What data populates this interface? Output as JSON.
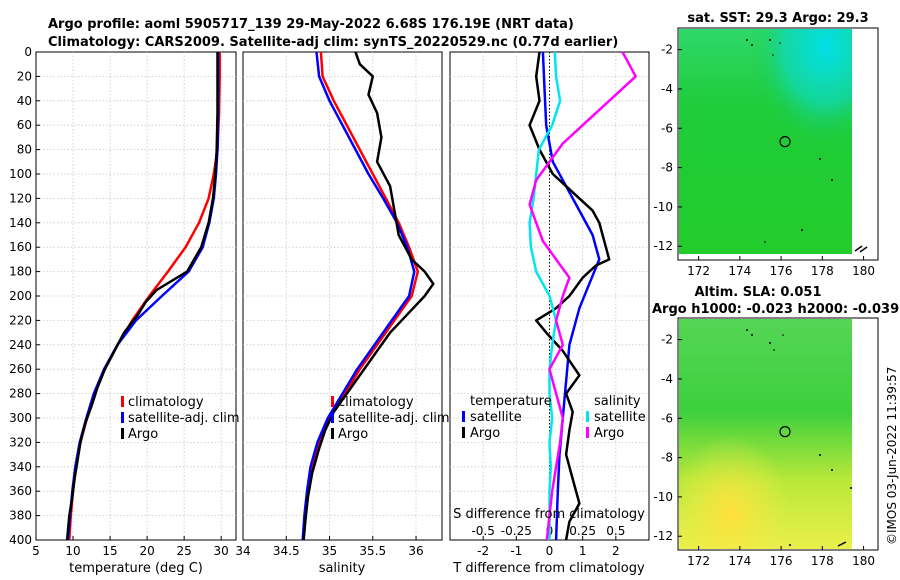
{
  "header": {
    "line1": "Argo profile: aoml 5905717_139 29-May-2022 6.68S 176.19E (NRT data)",
    "line2": "Climatology: CARS2009. Satellite-adj clim: synTS_20220529.nc (0.77d earlier)"
  },
  "colors": {
    "climatology": "#ff0000",
    "satellite": "#0000ff",
    "argo": "#000000",
    "t_diff": "#00e5ee",
    "s_diff": "#ff00ff"
  },
  "chart_data": [
    {
      "type": "line",
      "id": "temperature",
      "xlabel": "temperature (deg C)",
      "xlim": [
        5,
        32
      ],
      "xticks": [
        5,
        10,
        15,
        20,
        25,
        30
      ],
      "ylim": [
        0,
        400
      ],
      "yticks": [
        0,
        20,
        40,
        60,
        80,
        100,
        120,
        140,
        160,
        180,
        200,
        220,
        240,
        260,
        280,
        300,
        320,
        340,
        360,
        380,
        400
      ],
      "legend": [
        "climatology",
        "satellite-adj. clim",
        "Argo"
      ],
      "series": [
        {
          "name": "climatology",
          "color": "#ff0000",
          "points": [
            [
              29.8,
              0
            ],
            [
              29.8,
              20
            ],
            [
              29.7,
              50
            ],
            [
              29.5,
              80
            ],
            [
              29.0,
              100
            ],
            [
              28.3,
              120
            ],
            [
              27.0,
              140
            ],
            [
              25.2,
              160
            ],
            [
              22.8,
              180
            ],
            [
              20.3,
              200
            ],
            [
              18.0,
              220
            ],
            [
              16.0,
              240
            ],
            [
              14.2,
              260
            ],
            [
              12.9,
              280
            ],
            [
              11.9,
              300
            ],
            [
              11.0,
              320
            ],
            [
              10.4,
              340
            ],
            [
              10.0,
              360
            ],
            [
              9.7,
              380
            ],
            [
              9.5,
              400
            ]
          ]
        },
        {
          "name": "satellite-adj. clim",
          "color": "#0000ff",
          "points": [
            [
              29.6,
              0
            ],
            [
              29.6,
              20
            ],
            [
              29.6,
              50
            ],
            [
              29.5,
              80
            ],
            [
              29.3,
              100
            ],
            [
              29.0,
              120
            ],
            [
              28.4,
              140
            ],
            [
              27.5,
              160
            ],
            [
              25.6,
              180
            ],
            [
              22.0,
              200
            ],
            [
              18.5,
              220
            ],
            [
              16.0,
              240
            ],
            [
              14.2,
              260
            ],
            [
              12.8,
              280
            ],
            [
              11.8,
              300
            ],
            [
              10.9,
              320
            ],
            [
              10.3,
              340
            ],
            [
              9.9,
              360
            ],
            [
              9.6,
              380
            ],
            [
              9.3,
              400
            ]
          ]
        },
        {
          "name": "Argo",
          "color": "#000000",
          "points": [
            [
              29.5,
              0
            ],
            [
              29.5,
              20
            ],
            [
              29.5,
              50
            ],
            [
              29.4,
              80
            ],
            [
              29.2,
              100
            ],
            [
              28.9,
              120
            ],
            [
              28.3,
              140
            ],
            [
              27.3,
              160
            ],
            [
              25.4,
              180
            ],
            [
              21.3,
              195
            ],
            [
              19.8,
              205
            ],
            [
              18.8,
              215
            ],
            [
              16.9,
              230
            ],
            [
              15.6,
              245
            ],
            [
              14.3,
              260
            ],
            [
              13.3,
              275
            ],
            [
              12.5,
              290
            ],
            [
              11.6,
              305
            ],
            [
              11.0,
              320
            ],
            [
              10.6,
              335
            ],
            [
              10.2,
              350
            ],
            [
              9.9,
              365
            ],
            [
              9.5,
              380
            ],
            [
              9.2,
              400
            ]
          ]
        }
      ]
    },
    {
      "type": "line",
      "id": "salinity",
      "xlabel": "salinity",
      "xlim": [
        34,
        36.3
      ],
      "xticks": [
        34,
        34.5,
        35,
        35.5,
        36
      ],
      "xtick_labels": [
        "34",
        "34.5",
        "35",
        "35.5",
        "36"
      ],
      "ylim": [
        0,
        400
      ],
      "legend": [
        "climatology",
        "satellite-adj. clim",
        "Argo"
      ],
      "series": [
        {
          "name": "climatology",
          "color": "#ff0000",
          "points": [
            [
              34.9,
              0
            ],
            [
              34.92,
              20
            ],
            [
              35.05,
              40
            ],
            [
              35.2,
              60
            ],
            [
              35.35,
              80
            ],
            [
              35.5,
              100
            ],
            [
              35.65,
              120
            ],
            [
              35.8,
              140
            ],
            [
              35.92,
              160
            ],
            [
              36.02,
              180
            ],
            [
              35.95,
              200
            ],
            [
              35.75,
              220
            ],
            [
              35.55,
              240
            ],
            [
              35.35,
              260
            ],
            [
              35.18,
              280
            ],
            [
              35.0,
              300
            ],
            [
              34.88,
              320
            ],
            [
              34.8,
              340
            ],
            [
              34.75,
              360
            ],
            [
              34.72,
              380
            ],
            [
              34.7,
              400
            ]
          ]
        },
        {
          "name": "satellite-adj. clim",
          "color": "#0000ff",
          "points": [
            [
              34.85,
              0
            ],
            [
              34.88,
              20
            ],
            [
              35.0,
              40
            ],
            [
              35.15,
              60
            ],
            [
              35.3,
              80
            ],
            [
              35.45,
              100
            ],
            [
              35.62,
              120
            ],
            [
              35.78,
              140
            ],
            [
              35.9,
              160
            ],
            [
              35.98,
              180
            ],
            [
              35.92,
              200
            ],
            [
              35.72,
              220
            ],
            [
              35.52,
              240
            ],
            [
              35.32,
              260
            ],
            [
              35.15,
              280
            ],
            [
              34.98,
              300
            ],
            [
              34.86,
              320
            ],
            [
              34.78,
              340
            ],
            [
              34.74,
              360
            ],
            [
              34.71,
              380
            ],
            [
              34.69,
              400
            ]
          ]
        },
        {
          "name": "Argo",
          "color": "#000000",
          "points": [
            [
              35.3,
              0
            ],
            [
              35.35,
              10
            ],
            [
              35.5,
              20
            ],
            [
              35.45,
              35
            ],
            [
              35.55,
              50
            ],
            [
              35.6,
              70
            ],
            [
              35.55,
              90
            ],
            [
              35.7,
              110
            ],
            [
              35.75,
              130
            ],
            [
              35.8,
              150
            ],
            [
              35.95,
              170
            ],
            [
              36.1,
              180
            ],
            [
              36.2,
              190
            ],
            [
              36.1,
              200
            ],
            [
              35.9,
              215
            ],
            [
              35.7,
              230
            ],
            [
              35.5,
              250
            ],
            [
              35.35,
              265
            ],
            [
              35.2,
              280
            ],
            [
              35.05,
              295
            ],
            [
              34.95,
              310
            ],
            [
              34.88,
              325
            ],
            [
              34.8,
              345
            ],
            [
              34.75,
              365
            ],
            [
              34.72,
              385
            ],
            [
              34.7,
              400
            ]
          ]
        }
      ]
    },
    {
      "type": "line",
      "id": "differences",
      "xlabel": "T difference from climatology",
      "top_label": "S difference from climatology",
      "xlim": [
        -3,
        3
      ],
      "xticks": [
        -2,
        -1,
        0,
        1,
        2
      ],
      "top_xlim": [
        -0.75,
        0.75
      ],
      "top_ticks": [
        -0.5,
        -0.25,
        0,
        0.25,
        0.5
      ],
      "top_tick_labels": [
        "-0.5",
        "-0.25",
        "0",
        "0.25",
        "0.5"
      ],
      "ylim": [
        0,
        400
      ],
      "legend_titles": [
        "temperature",
        "salinity"
      ],
      "legend_temperature": [
        "satellite",
        "Argo"
      ],
      "legend_salinity": [
        "satellite",
        "Argo"
      ],
      "series": [
        {
          "name": "T satellite",
          "color": "#0000ff",
          "axis": "T",
          "points": [
            [
              -0.2,
              0
            ],
            [
              -0.15,
              30
            ],
            [
              -0.1,
              60
            ],
            [
              0.1,
              90
            ],
            [
              0.5,
              110
            ],
            [
              0.9,
              130
            ],
            [
              1.3,
              150
            ],
            [
              1.5,
              170
            ],
            [
              1.2,
              190
            ],
            [
              0.9,
              210
            ],
            [
              0.6,
              240
            ],
            [
              0.5,
              270
            ],
            [
              0.4,
              300
            ],
            [
              0.3,
              330
            ],
            [
              0.25,
              360
            ],
            [
              0.2,
              400
            ]
          ]
        },
        {
          "name": "T Argo",
          "color": "#000000",
          "axis": "T",
          "points": [
            [
              -0.3,
              0
            ],
            [
              -0.4,
              20
            ],
            [
              -0.3,
              40
            ],
            [
              -0.6,
              60
            ],
            [
              -0.3,
              80
            ],
            [
              0.1,
              100
            ],
            [
              0.5,
              110
            ],
            [
              0.9,
              120
            ],
            [
              1.3,
              130
            ],
            [
              1.5,
              140
            ],
            [
              1.6,
              150
            ],
            [
              1.7,
              160
            ],
            [
              1.8,
              170
            ],
            [
              1.4,
              175
            ],
            [
              1.0,
              185
            ],
            [
              0.6,
              200
            ],
            [
              0.2,
              210
            ],
            [
              -0.4,
              220
            ],
            [
              -0.1,
              230
            ],
            [
              0.4,
              245
            ],
            [
              0.9,
              265
            ],
            [
              0.5,
              280
            ],
            [
              0.7,
              295
            ],
            [
              0.6,
              310
            ],
            [
              0.5,
              330
            ],
            [
              0.7,
              350
            ],
            [
              0.9,
              370
            ],
            [
              0.6,
              385
            ],
            [
              0.5,
              400
            ]
          ]
        },
        {
          "name": "S satellite",
          "color": "#00e5ee",
          "axis": "S",
          "points": [
            [
              0.04,
              0
            ],
            [
              0.05,
              20
            ],
            [
              0.08,
              40
            ],
            [
              0.02,
              60
            ],
            [
              -0.08,
              80
            ],
            [
              -0.1,
              100
            ],
            [
              -0.12,
              120
            ],
            [
              -0.15,
              140
            ],
            [
              -0.14,
              160
            ],
            [
              -0.1,
              180
            ],
            [
              0.0,
              200
            ],
            [
              0.05,
              220
            ],
            [
              0.02,
              240
            ],
            [
              0.0,
              260
            ],
            [
              0.0,
              280
            ],
            [
              0.02,
              300
            ],
            [
              0.0,
              320
            ],
            [
              0.01,
              340
            ],
            [
              0.0,
              360
            ],
            [
              0.0,
              380
            ],
            [
              0.0,
              400
            ]
          ]
        },
        {
          "name": "S Argo",
          "color": "#ff00ff",
          "axis": "S",
          "points": [
            [
              0.55,
              0
            ],
            [
              0.6,
              10
            ],
            [
              0.65,
              20
            ],
            [
              0.55,
              30
            ],
            [
              0.45,
              40
            ],
            [
              0.3,
              55
            ],
            [
              0.1,
              75
            ],
            [
              0.0,
              90
            ],
            [
              -0.1,
              105
            ],
            [
              -0.15,
              125
            ],
            [
              -0.1,
              140
            ],
            [
              -0.05,
              155
            ],
            [
              0.05,
              170
            ],
            [
              0.15,
              185
            ],
            [
              0.1,
              200
            ],
            [
              0.05,
              220
            ],
            [
              0.1,
              240
            ],
            [
              0.0,
              260
            ],
            [
              0.05,
              280
            ],
            [
              0.1,
              300
            ],
            [
              0.08,
              320
            ],
            [
              0.05,
              340
            ],
            [
              0.02,
              360
            ],
            [
              0.0,
              380
            ],
            [
              -0.02,
              400
            ]
          ]
        }
      ]
    },
    {
      "type": "heatmap",
      "id": "sst-map",
      "title": "sat. SST: 29.3 Argo: 29.3",
      "xlim": [
        171,
        180.7
      ],
      "xticks": [
        172,
        174,
        176,
        178,
        180
      ],
      "ylim": [
        -12.7,
        -0.9
      ],
      "yticks": [
        -2,
        -4,
        -6,
        -8,
        -10,
        -12
      ],
      "argo_position": [
        176.19,
        -6.68
      ]
    },
    {
      "type": "heatmap",
      "id": "sla-map",
      "title_line1": "Altim. SLA: 0.051",
      "title_line2": "Argo h1000: -0.023 h2000: -0.039",
      "xlim": [
        171,
        180.7
      ],
      "xticks": [
        172,
        174,
        176,
        178,
        180
      ],
      "ylim": [
        -12.7,
        -0.9
      ],
      "yticks": [
        -2,
        -4,
        -6,
        -8,
        -10,
        -12
      ],
      "argo_position": [
        176.19,
        -6.68
      ]
    }
  ],
  "watermark": "©IMOS 03-Jun-2022 11:39:57"
}
